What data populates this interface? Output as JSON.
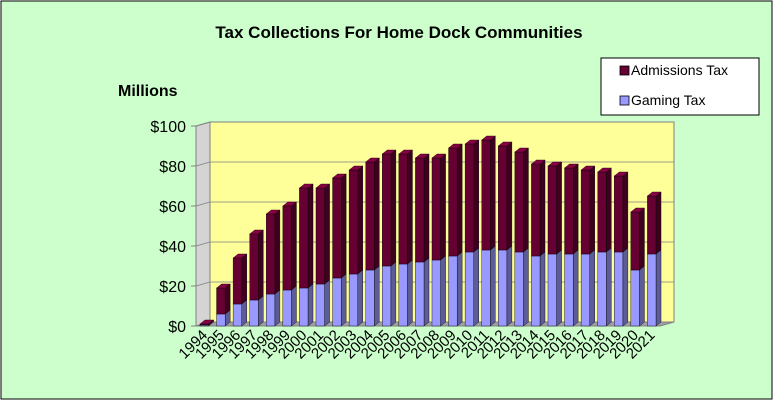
{
  "chart_data": {
    "type": "bar",
    "stacked": true,
    "title": "Tax Collections For Home Dock Communities",
    "ylabel": "Millions",
    "xlabel": "",
    "ylim": [
      0,
      100
    ],
    "yticks": [
      "$0",
      "$20",
      "$40",
      "$60",
      "$80",
      "$100"
    ],
    "ytick_values": [
      0,
      20,
      40,
      60,
      80,
      100
    ],
    "categories": [
      "1994",
      "1995",
      "1996",
      "1997",
      "1998",
      "1999",
      "2000",
      "2001",
      "2002",
      "2003",
      "2004",
      "2005",
      "2006",
      "2007",
      "2008",
      "2009",
      "2010",
      "2011",
      "2012",
      "2013",
      "2014",
      "2015",
      "2016",
      "2017",
      "2018",
      "2019",
      "2020",
      "2021"
    ],
    "series": [
      {
        "name": "Gaming Tax",
        "values": [
          0.5,
          6,
          11,
          13,
          16,
          18,
          19,
          21,
          24,
          26,
          28,
          30,
          31,
          32,
          33,
          35,
          37,
          38,
          38,
          37,
          35,
          36,
          36,
          36,
          37,
          37,
          28,
          36
        ]
      },
      {
        "name": "Admissions Tax",
        "values": [
          0.5,
          13,
          23,
          33,
          40,
          42,
          50,
          48,
          50,
          52,
          54,
          56,
          55,
          52,
          51,
          54,
          54,
          55,
          52,
          50,
          46,
          44,
          43,
          42,
          40,
          38,
          29,
          29
        ]
      }
    ],
    "legend_order": [
      "Admissions Tax",
      "Gaming Tax"
    ],
    "legend_position": "top-right",
    "colors": {
      "background": "#CCFFCC",
      "plot_area": "#FFFF99",
      "gaming": "#9999FF",
      "admissions": "#660033"
    }
  }
}
